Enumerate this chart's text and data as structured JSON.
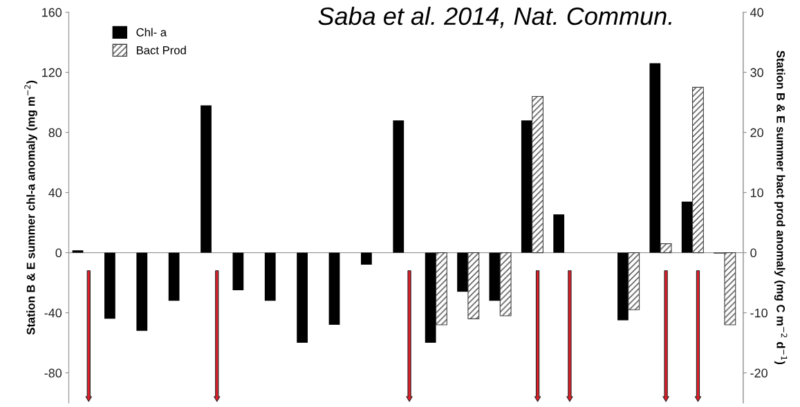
{
  "chart_data": {
    "type": "bar",
    "annotations": [
      "Saba et al. 2014, Nat. Commun."
    ],
    "ylabel": "Station B & E summer chl-a anomaly (mg m$^{−2}$)",
    "y2label": "Station B & E summer bact prod anomaly (mg C m$^{−2}$ d$^{−1}$)",
    "categories": [
      null,
      null,
      null,
      null,
      null,
      null,
      null,
      null,
      null,
      null,
      null,
      null,
      null,
      null,
      null,
      null,
      null,
      null,
      null,
      null,
      null
    ],
    "series": [
      {
        "name": "Chl- a",
        "color": "#000000",
        "values": [
          1.5,
          -44,
          -52,
          -32,
          98,
          -25,
          -32,
          -60,
          -48,
          -8,
          88,
          -60,
          -26,
          -32,
          88,
          25.5,
          null,
          -45,
          126,
          34,
          -0.5
        ]
      },
      {
        "name": "Bact Prod",
        "color": "#404040",
        "axis": "y2",
        "values": [
          null,
          null,
          null,
          null,
          null,
          null,
          null,
          null,
          null,
          null,
          null,
          -12,
          -11,
          -10.5,
          26,
          null,
          null,
          -9.5,
          1.5,
          27.5,
          -12
        ]
      }
    ],
    "ylim": [
      -100,
      160
    ],
    "yticks": [
      -80,
      -40,
      0,
      40,
      80,
      120,
      160
    ],
    "y2lim": [
      -25,
      40
    ],
    "y2ticks": [
      -20,
      -10,
      0,
      10,
      20,
      30,
      40
    ],
    "ref_lines": [
      {
        "axis": "y",
        "value": 0,
        "color": "#999999"
      }
    ],
    "grid": false,
    "legend": "top left"
  }
}
